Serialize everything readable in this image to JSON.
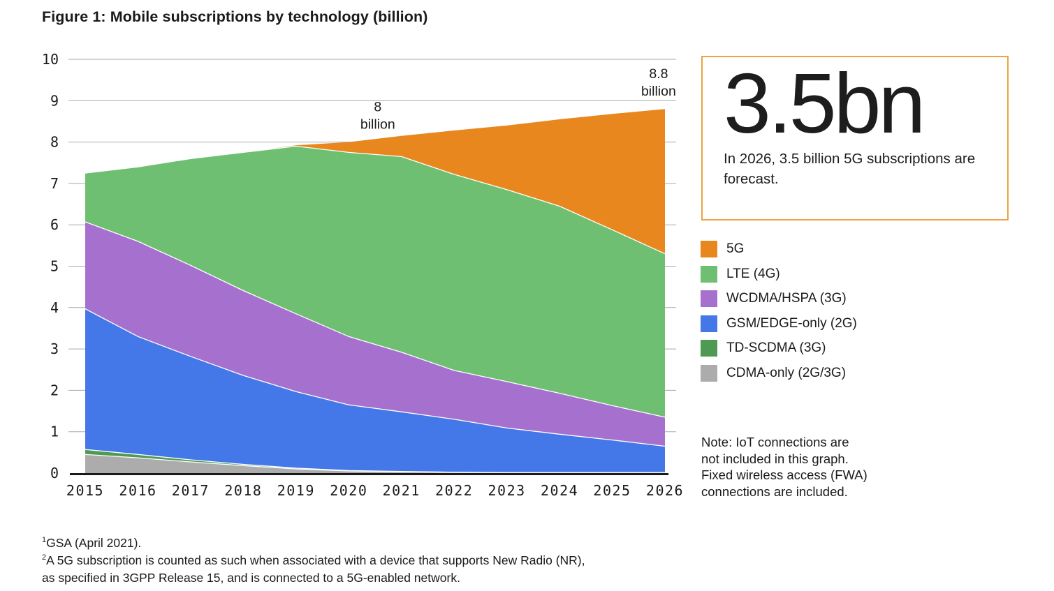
{
  "figure": {
    "title": "Figure 1: Mobile subscriptions by technology (billion)"
  },
  "chart_data": {
    "type": "area",
    "stacked": true,
    "title": "Figure 1: Mobile subscriptions by technology (billion)",
    "x": [
      2015,
      2016,
      2017,
      2018,
      2019,
      2020,
      2021,
      2022,
      2023,
      2024,
      2025,
      2026
    ],
    "xlabel": "",
    "ylabel": "",
    "ylim": [
      0,
      10
    ],
    "yticks": [
      0,
      1,
      2,
      3,
      4,
      5,
      6,
      7,
      8,
      9,
      10
    ],
    "grid": true,
    "series": [
      {
        "name": "CDMA-only (2G/3G)",
        "color": "#ACACAC",
        "values": [
          0.45,
          0.37,
          0.27,
          0.18,
          0.1,
          0.05,
          0.03,
          0.02,
          0.01,
          0.01,
          0.01,
          0.01
        ]
      },
      {
        "name": "TD-SCDMA (3G)",
        "color": "#4F9A52",
        "values": [
          0.12,
          0.08,
          0.05,
          0.03,
          0.02,
          0.01,
          0.01,
          0.0,
          0.0,
          0.0,
          0.0,
          0.0
        ]
      },
      {
        "name": "GSM/EDGE-only (2G)",
        "color": "#4478E8",
        "values": [
          3.4,
          2.85,
          2.5,
          2.15,
          1.85,
          1.59,
          1.44,
          1.28,
          1.08,
          0.93,
          0.79,
          0.64
        ]
      },
      {
        "name": "WCDMA/HSPA (3G)",
        "color": "#A671CE",
        "values": [
          2.1,
          2.3,
          2.2,
          2.05,
          1.88,
          1.65,
          1.44,
          1.18,
          1.12,
          0.99,
          0.83,
          0.7
        ]
      },
      {
        "name": "LTE (4G)",
        "color": "#6FBF72",
        "values": [
          1.18,
          1.8,
          2.58,
          3.34,
          4.05,
          4.45,
          4.73,
          4.74,
          4.64,
          4.52,
          4.25,
          3.95
        ]
      },
      {
        "name": "5G",
        "color": "#E8871E",
        "values": [
          0.0,
          0.0,
          0.0,
          0.0,
          0.02,
          0.25,
          0.5,
          1.06,
          1.55,
          2.1,
          2.8,
          3.5
        ]
      }
    ],
    "annotations": [
      {
        "label": "8 billion",
        "lines": "8\nbillion",
        "at_year": 2020.55,
        "anchor_value": 8.0
      },
      {
        "label": "8.8 billion",
        "lines": "8.8\nbillion",
        "at_year": 2025.88,
        "anchor_value": 8.8
      }
    ],
    "style": {
      "grid_color": "#A8A8A8",
      "axis_color": "#1A1A1A",
      "tick_label_color": "#1A1A1A",
      "seam_color": "#FFFFFF"
    },
    "legend_position": "right"
  },
  "callout": {
    "big_number": "3.5bn",
    "description": "In 2026, 3.5 billion 5G subscriptions are forecast.",
    "border_color": "#EBA43F"
  },
  "legend": {
    "items": [
      {
        "label": "5G",
        "color": "#E8871E"
      },
      {
        "label": "LTE (4G)",
        "color": "#6FBF72"
      },
      {
        "label": "WCDMA/HSPA (3G)",
        "color": "#A671CE"
      },
      {
        "label": "GSM/EDGE-only (2G)",
        "color": "#4478E8"
      },
      {
        "label": "TD-SCDMA (3G)",
        "color": "#4F9A52"
      },
      {
        "label": "CDMA-only (2G/3G)",
        "color": "#ACACAC"
      }
    ]
  },
  "note": {
    "text": "Note: IoT connections are\nnot included in this graph.\nFixed wireless access (FWA)\nconnections are included."
  },
  "footnotes": [
    {
      "sup": "1",
      "text": "GSA (April 2021)."
    },
    {
      "sup": "2",
      "text": "A 5G subscription is counted as such when associated with a device that supports New Radio (NR),\nas specified in 3GPP Release 15, and is connected to a 5G-enabled network."
    }
  ]
}
